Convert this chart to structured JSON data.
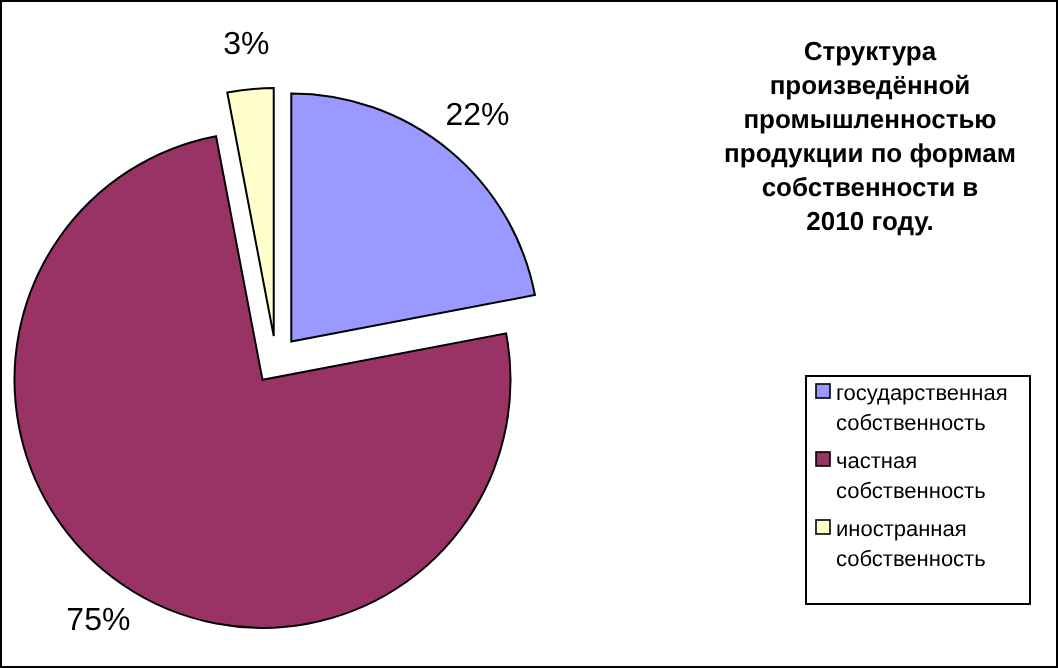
{
  "chart_data": {
    "type": "pie",
    "title": "Структура произведённой промышленностью продукции по формам собственности в 2010 году.",
    "categories": [
      "государственная собственность",
      "частная собственность",
      "иностранная собственность"
    ],
    "values": [
      22,
      75,
      3
    ],
    "colors": [
      "#9999ff",
      "#993366",
      "#ffffcc"
    ],
    "value_labels": [
      "22%",
      "75%",
      "3%"
    ],
    "legend": "right"
  }
}
